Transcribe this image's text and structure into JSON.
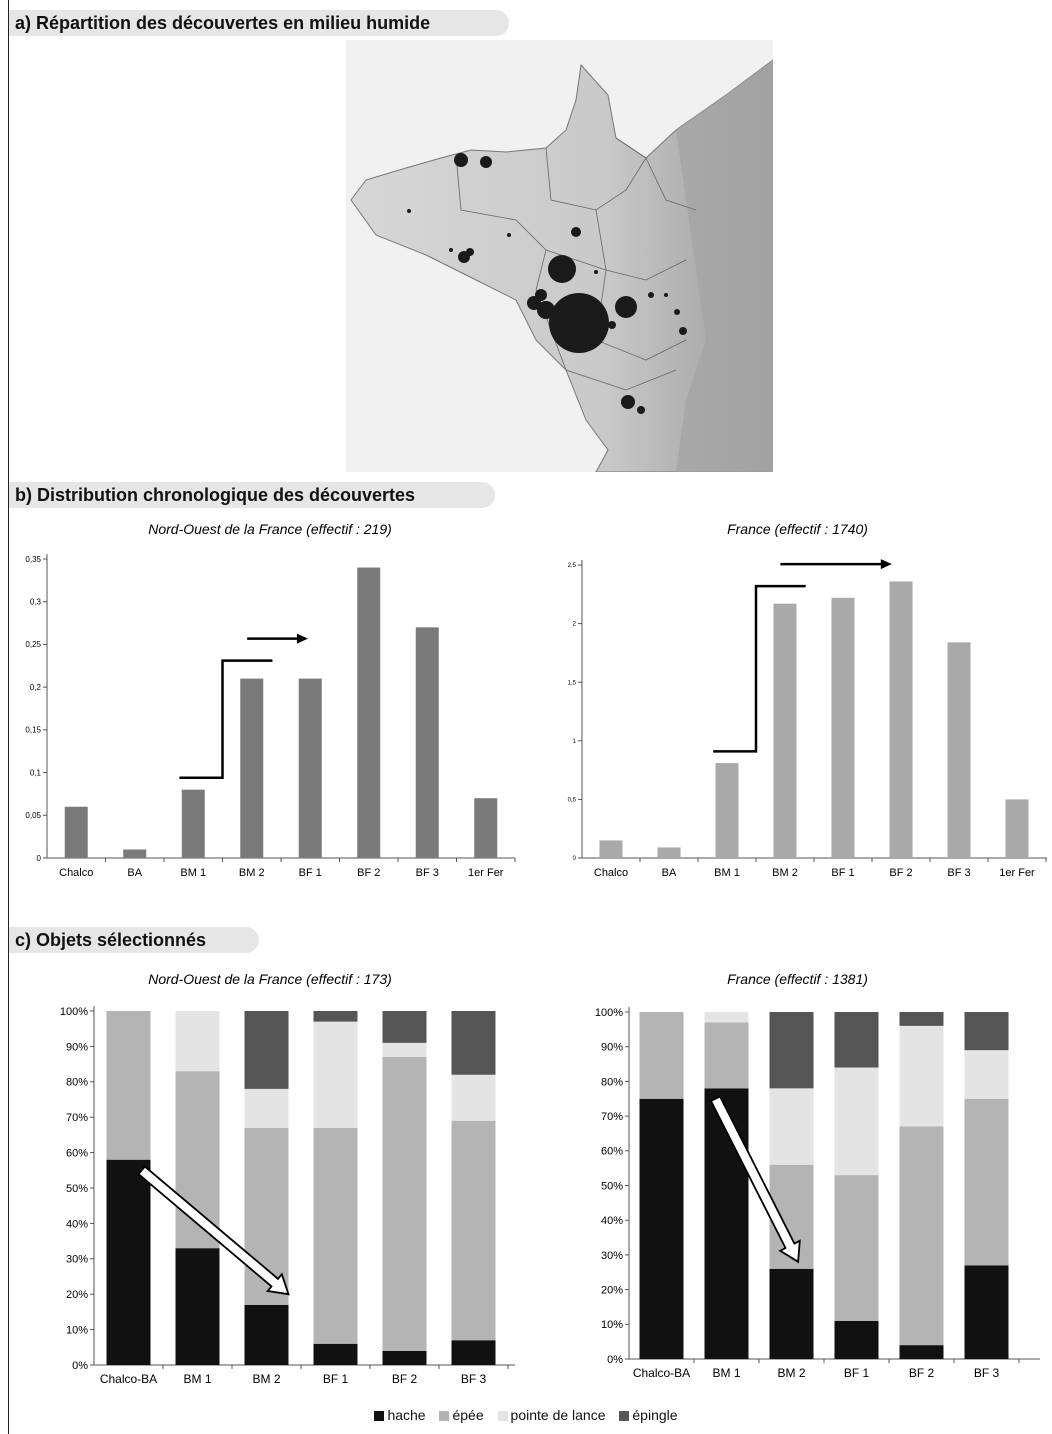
{
  "sections": {
    "a": "a) Répartition des découvertes en milieu humide",
    "b": "b) Distribution chronologique des découvertes",
    "c": "c) Objets sélectionnés"
  },
  "map": {
    "type": "map",
    "description_icon": "map-image"
  },
  "chart_data": [
    {
      "id": "b1",
      "type": "bar",
      "title": "Nord-Ouest de la France  (effectif : 219)",
      "categories": [
        "Chalco",
        "BA",
        "BM 1",
        "BM 2",
        "BF 1",
        "BF 2",
        "BF 3",
        "1er Fer"
      ],
      "values": [
        0.06,
        0.01,
        0.08,
        0.21,
        0.21,
        0.34,
        0.27,
        0.07
      ],
      "ylim": [
        0,
        0.35
      ],
      "yticks": [
        0,
        0.05,
        0.1,
        0.15,
        0.2,
        0.25,
        0.3,
        0.35
      ],
      "ytick_labels": [
        "0",
        "0,05",
        "0,1",
        "0,15",
        "0,2",
        "0,25",
        "0,3",
        "0,35"
      ],
      "bar_color": "#7a7a7a",
      "step_arrow": {
        "from_category": "BM 1",
        "to_category": "BM 2",
        "arrow_toward": "BF 1"
      }
    },
    {
      "id": "b2",
      "type": "bar",
      "title": "France  (effectif : 1740)",
      "categories": [
        "Chalco",
        "BA",
        "BM 1",
        "BM 2",
        "BF 1",
        "BF 2",
        "BF 3",
        "1er Fer"
      ],
      "values": [
        0.15,
        0.09,
        0.81,
        2.17,
        2.22,
        2.36,
        1.84,
        0.5
      ],
      "ylim": [
        0,
        2.5
      ],
      "yticks": [
        0,
        0.5,
        1,
        1.5,
        2,
        2.5
      ],
      "ytick_labels": [
        "0",
        "0,5",
        "1",
        "1,5",
        "2",
        "2,5"
      ],
      "bar_color": "#a9a9a9",
      "step_arrow": {
        "from_category": "BM 1",
        "to_category": "BM 2",
        "arrow_toward": "BF 2"
      }
    },
    {
      "id": "c1",
      "type": "bar",
      "stacked": true,
      "title": "Nord-Ouest de la France  (effectif : 173)",
      "categories": [
        "Chalco-BA",
        "BM 1",
        "BM 2",
        "BF 1",
        "BF 2",
        "BF 3"
      ],
      "ylim": [
        0,
        100
      ],
      "yticks": [
        0,
        10,
        20,
        30,
        40,
        50,
        60,
        70,
        80,
        90,
        100
      ],
      "ytick_labels": [
        "0%",
        "10%",
        "20%",
        "30%",
        "40%",
        "50%",
        "60%",
        "70%",
        "80%",
        "90%",
        "100%"
      ],
      "series": [
        {
          "name": "hache",
          "color": "#111111",
          "values": [
            58,
            33,
            17,
            6,
            4,
            7
          ]
        },
        {
          "name": "épée",
          "color": "#b4b4b4",
          "values": [
            42,
            50,
            50,
            61,
            83,
            62
          ]
        },
        {
          "name": "pointe de lance",
          "color": "#e4e4e4",
          "values": [
            0,
            17,
            11,
            30,
            4,
            13
          ]
        },
        {
          "name": "épingle",
          "color": "#555555",
          "values": [
            0,
            0,
            22,
            3,
            9,
            18
          ]
        }
      ],
      "trend_arrow": {
        "from_category": "Chalco-BA",
        "to_category": "BM 2"
      }
    },
    {
      "id": "c2",
      "type": "bar",
      "stacked": true,
      "title": "France  (effectif : 1381)",
      "categories": [
        "Chalco-BA",
        "BM 1",
        "BM 2",
        "BF 1",
        "BF 2",
        "BF 3"
      ],
      "ylim": [
        0,
        100
      ],
      "yticks": [
        0,
        10,
        20,
        30,
        40,
        50,
        60,
        70,
        80,
        90,
        100
      ],
      "ytick_labels": [
        "0%",
        "10%",
        "20%",
        "30%",
        "40%",
        "50%",
        "60%",
        "70%",
        "80%",
        "90%",
        "100%"
      ],
      "series": [
        {
          "name": "hache",
          "color": "#111111",
          "values": [
            75,
            78,
            26,
            11,
            4,
            27
          ]
        },
        {
          "name": "épée",
          "color": "#b4b4b4",
          "values": [
            25,
            19,
            30,
            42,
            63,
            48
          ]
        },
        {
          "name": "pointe de lance",
          "color": "#e4e4e4",
          "values": [
            0,
            3,
            22,
            31,
            29,
            14
          ]
        },
        {
          "name": "épingle",
          "color": "#555555",
          "values": [
            0,
            0,
            22,
            16,
            4,
            11
          ]
        }
      ],
      "trend_arrow": {
        "from_category": "BM 1",
        "to_category": "BM 2"
      }
    }
  ],
  "legend": [
    {
      "label": "hache",
      "color": "#111111"
    },
    {
      "label": "épée",
      "color": "#b4b4b4"
    },
    {
      "label": "pointe de lance",
      "color": "#e4e4e4"
    },
    {
      "label": "épingle",
      "color": "#555555"
    }
  ]
}
